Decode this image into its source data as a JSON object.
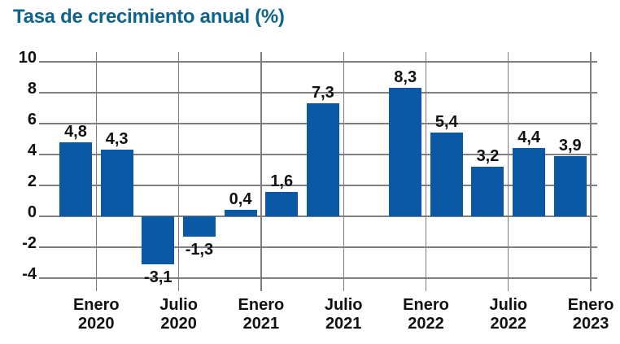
{
  "chart_data": {
    "type": "bar",
    "title": "Tasa de crecimiento anual (%)",
    "xlabel": "",
    "ylabel": "",
    "ylim": [
      -4,
      10
    ],
    "grid": true,
    "legend": false,
    "y_ticks": [
      "10",
      "8",
      "6",
      "4",
      "2",
      "0",
      "-2",
      "-4"
    ],
    "y_tick_values": [
      10,
      8,
      6,
      4,
      2,
      0,
      -2,
      -4
    ],
    "x_tick_labels": [
      {
        "line1": "Enero",
        "line2": "2020"
      },
      {
        "line1": "Julio",
        "line2": "2020"
      },
      {
        "line1": "Enero",
        "line2": "2021"
      },
      {
        "line1": "Julio",
        "line2": "2021"
      },
      {
        "line1": "Enero",
        "line2": "2022"
      },
      {
        "line1": "Julio",
        "line2": "2022"
      },
      {
        "line1": "Enero",
        "line2": "2023"
      }
    ],
    "values": [
      4.8,
      4.3,
      -3.1,
      -1.3,
      0.4,
      1.6,
      7.3,
      null,
      8.3,
      5.4,
      3.2,
      4.4,
      3.9
    ],
    "value_labels": [
      "4,8",
      "4,3",
      "-3,1",
      "-1,3",
      "0,4",
      "1,6",
      "7,3",
      null,
      "8,3",
      "5,4",
      "3,2",
      "4,4",
      "3,9"
    ],
    "colors": {
      "bar": "#0b58a4",
      "grid": "#7f7f7f",
      "title": "#0e648c",
      "text": "#111111",
      "background": "#ffffff"
    }
  }
}
